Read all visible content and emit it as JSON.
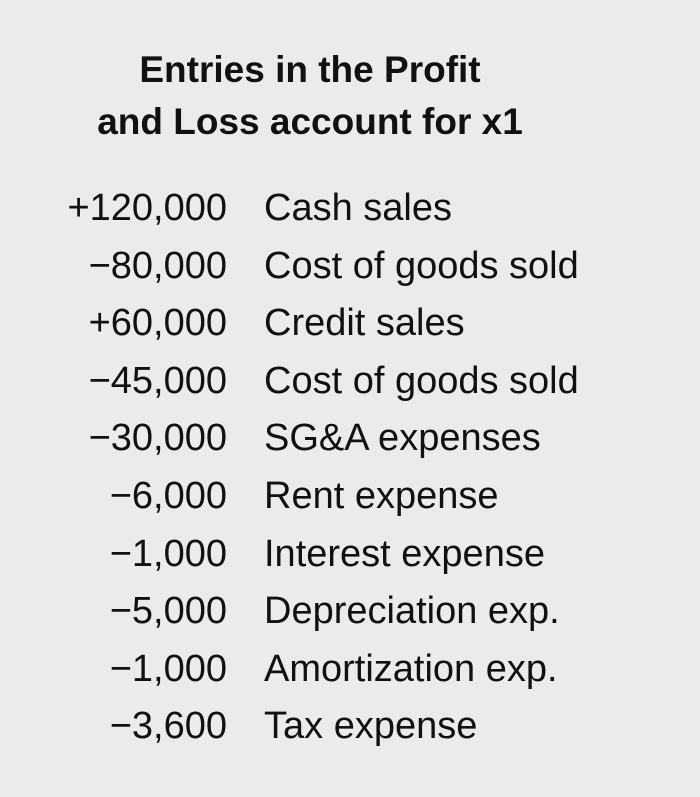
{
  "title": {
    "line1": "Entries in the Profit",
    "line2": "and Loss account for x1"
  },
  "entries": [
    {
      "amount": "+120,000",
      "description": "Cash sales"
    },
    {
      "amount": "−80,000",
      "description": "Cost of goods sold"
    },
    {
      "amount": "+60,000",
      "description": "Credit sales"
    },
    {
      "amount": "−45,000",
      "description": "Cost of goods sold"
    },
    {
      "amount": "−30,000",
      "description": "SG&A expenses"
    },
    {
      "amount": "−6,000",
      "description": "Rent expense"
    },
    {
      "amount": "−1,000",
      "description": "Interest expense"
    },
    {
      "amount": "−5,000",
      "description": "Depreciation exp."
    },
    {
      "amount": "−1,000",
      "description": "Amortization exp."
    },
    {
      "amount": "−3,600",
      "description": "Tax expense"
    }
  ]
}
